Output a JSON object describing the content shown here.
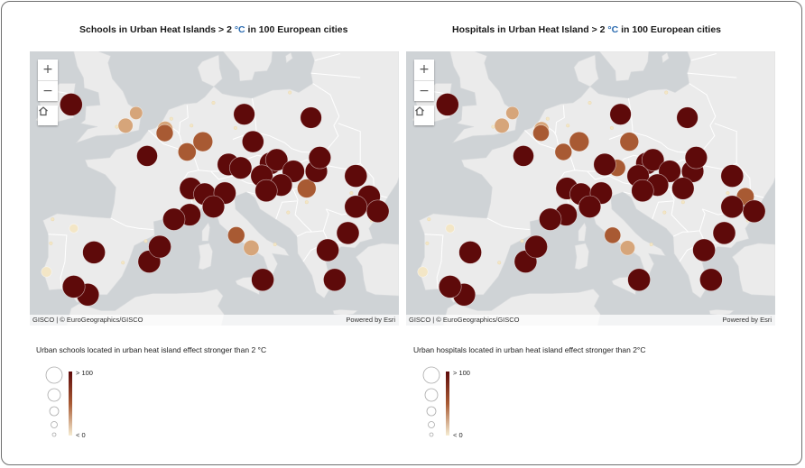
{
  "colors": {
    "water": "#cfd3d6",
    "land": "#ebebeb",
    "border": "#ffffff",
    "high": "#5e0a0a",
    "mid": "#a85a33",
    "low": "#d6a57a",
    "lowest": "#f3e6c6"
  },
  "panels": [
    {
      "title_main": "Schools in Urban Heat Islands > 2 ",
      "title_unit": "°C",
      "title_rest": " in 100 European cities",
      "legend_title": "Urban schools located in urban heat island effect stronger than 2 °C",
      "legend_max": "> 100",
      "legend_min": "< 0",
      "attribution": "GISCO | © EuroGeographics/GISCO",
      "powered_by": "Powered by Esri",
      "zoom_in": "+",
      "zoom_out": "−",
      "home_icon": "home-icon",
      "points": [
        {
          "lon": -6.3,
          "lat": 53.35,
          "v": 100
        },
        {
          "lon": 1.1,
          "lat": 52.6,
          "v": 20
        },
        {
          "lon": -0.1,
          "lat": 51.5,
          "v": 30
        },
        {
          "lon": 4.4,
          "lat": 51.2,
          "v": 35
        },
        {
          "lon": 4.35,
          "lat": 50.85,
          "v": 45
        },
        {
          "lon": 2.35,
          "lat": 48.85,
          "v": 80
        },
        {
          "lon": 6.9,
          "lat": 49.2,
          "v": 55
        },
        {
          "lon": 8.7,
          "lat": 50.1,
          "v": 70
        },
        {
          "lon": 13.4,
          "lat": 52.5,
          "v": 85
        },
        {
          "lon": 21.0,
          "lat": 52.2,
          "v": 85
        },
        {
          "lon": 14.4,
          "lat": 50.1,
          "v": 90
        },
        {
          "lon": 16.4,
          "lat": 48.2,
          "v": 95
        },
        {
          "lon": 17.1,
          "lat": 48.5,
          "v": 95
        },
        {
          "lon": 19.0,
          "lat": 47.5,
          "v": 95
        },
        {
          "lon": 21.6,
          "lat": 47.5,
          "v": 95
        },
        {
          "lon": 22.0,
          "lat": 48.7,
          "v": 95
        },
        {
          "lon": 11.6,
          "lat": 48.1,
          "v": 95
        },
        {
          "lon": 13.0,
          "lat": 47.8,
          "v": 95
        },
        {
          "lon": 15.4,
          "lat": 47.1,
          "v": 95
        },
        {
          "lon": 17.6,
          "lat": 46.3,
          "v": 95
        },
        {
          "lon": 20.5,
          "lat": 46.0,
          "v": 60
        },
        {
          "lon": 26.1,
          "lat": 47.1,
          "v": 100
        },
        {
          "lon": 27.6,
          "lat": 45.3,
          "v": 100
        },
        {
          "lon": 28.6,
          "lat": 44.0,
          "v": 100
        },
        {
          "lon": 26.1,
          "lat": 44.4,
          "v": 100
        },
        {
          "lon": 7.3,
          "lat": 46.0,
          "v": 95
        },
        {
          "lon": 8.9,
          "lat": 45.5,
          "v": 95
        },
        {
          "lon": 11.2,
          "lat": 45.6,
          "v": 95
        },
        {
          "lon": 15.9,
          "lat": 45.8,
          "v": 95
        },
        {
          "lon": 9.9,
          "lat": 44.4,
          "v": 95
        },
        {
          "lon": 7.2,
          "lat": 43.7,
          "v": 95
        },
        {
          "lon": 5.4,
          "lat": 43.3,
          "v": 95
        },
        {
          "lon": -3.7,
          "lat": 40.4,
          "v": 100
        },
        {
          "lon": 2.6,
          "lat": 39.6,
          "v": 100
        },
        {
          "lon": 3.8,
          "lat": 40.9,
          "v": 100
        },
        {
          "lon": 12.5,
          "lat": 41.9,
          "v": 45
        },
        {
          "lon": 14.2,
          "lat": 40.8,
          "v": 35
        },
        {
          "lon": 25.2,
          "lat": 42.1,
          "v": 100
        },
        {
          "lon": 22.9,
          "lat": 40.6,
          "v": 100
        },
        {
          "lon": 23.7,
          "lat": 38.0,
          "v": 100
        },
        {
          "lon": 15.5,
          "lat": 38.0,
          "v": 100
        },
        {
          "lon": -4.4,
          "lat": 36.7,
          "v": 100
        },
        {
          "lon": -6.0,
          "lat": 37.4,
          "v": 100
        },
        {
          "lon": -9.1,
          "lat": 38.7,
          "v": 8
        },
        {
          "lon": -6.0,
          "lat": 42.5,
          "v": 4
        }
      ]
    },
    {
      "title_main": "Hospitals in Urban Heat Island  > 2 ",
      "title_unit": "°C",
      "title_rest": "  in 100 European cities",
      "legend_title": "Urban hospitals located in urban heat island effect stronger than 2°C",
      "legend_max": "> 100",
      "legend_min": "< 0",
      "attribution": "GISCO | © EuroGeographics/GISCO",
      "powered_by": "Powered by Esri",
      "zoom_in": "+",
      "zoom_out": "−",
      "home_icon": "home-icon",
      "points": [
        {
          "lon": -6.3,
          "lat": 53.35,
          "v": 100
        },
        {
          "lon": 1.1,
          "lat": 52.6,
          "v": 20
        },
        {
          "lon": -0.1,
          "lat": 51.5,
          "v": 30
        },
        {
          "lon": 4.4,
          "lat": 51.2,
          "v": 30
        },
        {
          "lon": 4.35,
          "lat": 50.85,
          "v": 40
        },
        {
          "lon": 2.35,
          "lat": 48.85,
          "v": 80
        },
        {
          "lon": 6.9,
          "lat": 49.2,
          "v": 45
        },
        {
          "lon": 8.7,
          "lat": 50.1,
          "v": 70
        },
        {
          "lon": 13.4,
          "lat": 52.5,
          "v": 85
        },
        {
          "lon": 21.0,
          "lat": 52.2,
          "v": 85
        },
        {
          "lon": 14.4,
          "lat": 50.1,
          "v": 60
        },
        {
          "lon": 16.4,
          "lat": 48.2,
          "v": 95
        },
        {
          "lon": 17.1,
          "lat": 48.5,
          "v": 95
        },
        {
          "lon": 19.0,
          "lat": 47.5,
          "v": 95
        },
        {
          "lon": 21.6,
          "lat": 47.5,
          "v": 95
        },
        {
          "lon": 22.0,
          "lat": 48.7,
          "v": 95
        },
        {
          "lon": 11.6,
          "lat": 48.1,
          "v": 95
        },
        {
          "lon": 13.0,
          "lat": 47.8,
          "v": 45
        },
        {
          "lon": 15.4,
          "lat": 47.1,
          "v": 95
        },
        {
          "lon": 17.6,
          "lat": 46.3,
          "v": 95
        },
        {
          "lon": 20.5,
          "lat": 46.0,
          "v": 95
        },
        {
          "lon": 26.1,
          "lat": 47.1,
          "v": 100
        },
        {
          "lon": 27.6,
          "lat": 45.3,
          "v": 50
        },
        {
          "lon": 28.6,
          "lat": 44.0,
          "v": 100
        },
        {
          "lon": 26.1,
          "lat": 44.4,
          "v": 100
        },
        {
          "lon": 7.3,
          "lat": 46.0,
          "v": 95
        },
        {
          "lon": 8.9,
          "lat": 45.5,
          "v": 95
        },
        {
          "lon": 11.2,
          "lat": 45.6,
          "v": 95
        },
        {
          "lon": 15.9,
          "lat": 45.8,
          "v": 95
        },
        {
          "lon": 9.9,
          "lat": 44.4,
          "v": 95
        },
        {
          "lon": 7.2,
          "lat": 43.7,
          "v": 95
        },
        {
          "lon": 5.4,
          "lat": 43.3,
          "v": 95
        },
        {
          "lon": -3.7,
          "lat": 40.4,
          "v": 100
        },
        {
          "lon": 2.6,
          "lat": 39.6,
          "v": 100
        },
        {
          "lon": 3.8,
          "lat": 40.9,
          "v": 100
        },
        {
          "lon": 12.5,
          "lat": 41.9,
          "v": 40
        },
        {
          "lon": 14.2,
          "lat": 40.8,
          "v": 30
        },
        {
          "lon": 25.2,
          "lat": 42.1,
          "v": 100
        },
        {
          "lon": 22.9,
          "lat": 40.6,
          "v": 100
        },
        {
          "lon": 23.7,
          "lat": 38.0,
          "v": 100
        },
        {
          "lon": 15.5,
          "lat": 38.0,
          "v": 100
        },
        {
          "lon": -4.4,
          "lat": 36.7,
          "v": 100
        },
        {
          "lon": -6.0,
          "lat": 37.4,
          "v": 100
        },
        {
          "lon": -9.1,
          "lat": 38.7,
          "v": 8
        },
        {
          "lon": -6.0,
          "lat": 42.5,
          "v": 4
        }
      ]
    }
  ]
}
